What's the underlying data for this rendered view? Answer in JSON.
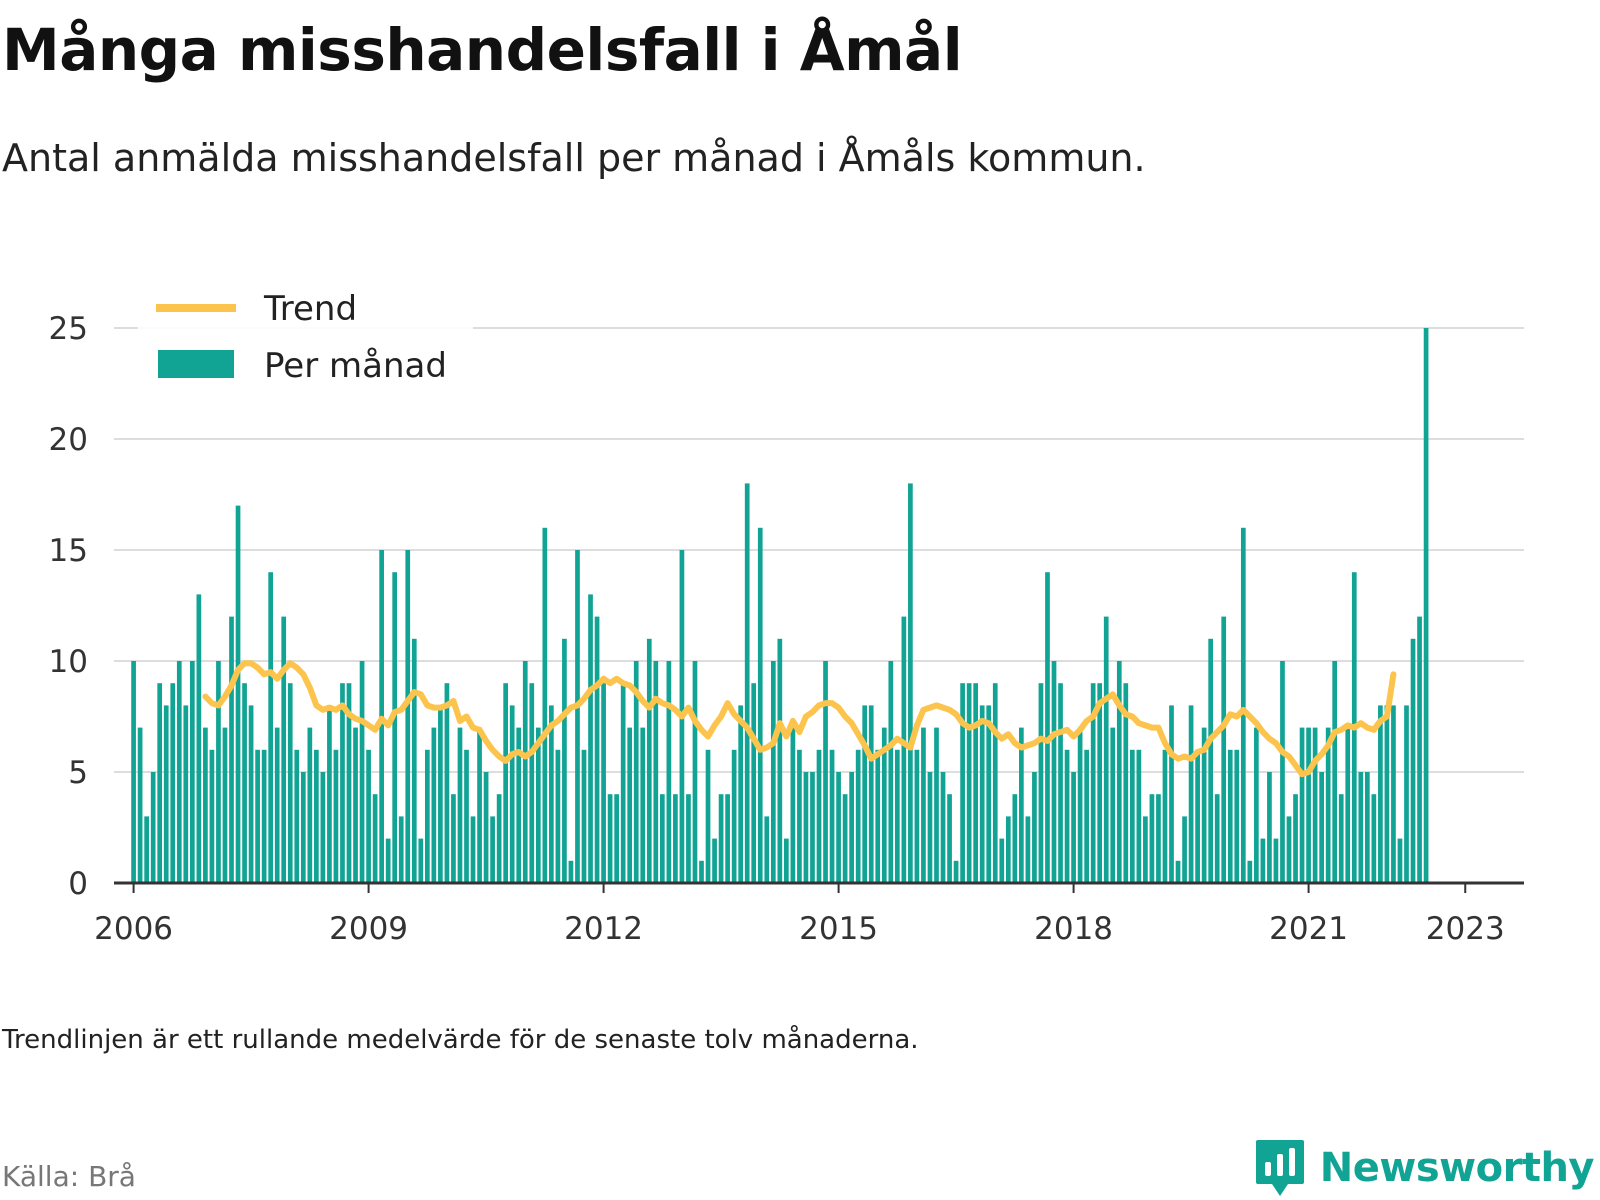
{
  "title": "Många misshandelsfall i Åmål",
  "subtitle": "Antal anmälda misshandelsfall per månad i Åmåls kommun.",
  "footnote": "Trendlinjen är ett rullande medelvärde för de senaste tolv månaderna.",
  "source": "Källa: Brå",
  "brand": {
    "name": "Newsworthy",
    "icon": "newsworthy-chart-bubble-icon"
  },
  "colors": {
    "bar": "#11a394",
    "trend": "#fcc44d",
    "grid": "#dddddd",
    "axis": "#333333"
  },
  "chart_data": {
    "type": "bar",
    "x_start": "2006-01",
    "interval": "month",
    "xlim": [
      "2005-10",
      "2023-10"
    ],
    "ylim": [
      0,
      25
    ],
    "yticks": [
      0,
      5,
      10,
      15,
      20,
      25
    ],
    "xticks": [
      "2006",
      "2009",
      "2012",
      "2015",
      "2018",
      "2021",
      "2023"
    ],
    "grid": "horizontal",
    "legend_position": "top-left",
    "series": [
      {
        "name": "Per månad",
        "type": "bar",
        "values": [
          10,
          7,
          3,
          5,
          9,
          8,
          9,
          10,
          8,
          10,
          13,
          7,
          6,
          10,
          7,
          12,
          17,
          9,
          8,
          6,
          6,
          14,
          7,
          12,
          9,
          6,
          5,
          7,
          6,
          5,
          8,
          6,
          9,
          9,
          7,
          10,
          6,
          4,
          15,
          2,
          14,
          3,
          15,
          11,
          2,
          6,
          7,
          8,
          9,
          4,
          7,
          6,
          3,
          7,
          5,
          3,
          4,
          9,
          8,
          7,
          10,
          9,
          7,
          16,
          8,
          6,
          11,
          1,
          15,
          6,
          13,
          12,
          9,
          4,
          4,
          9,
          7,
          10,
          7,
          11,
          10,
          4,
          10,
          4,
          15,
          4,
          10,
          1,
          6,
          2,
          4,
          4,
          6,
          8,
          18,
          9,
          16,
          3,
          10,
          11,
          2,
          7,
          6,
          5,
          5,
          6,
          10,
          6,
          5,
          4,
          5,
          6,
          8,
          8,
          6,
          7,
          10,
          6,
          12,
          18,
          6,
          7,
          5,
          7,
          5,
          4,
          1,
          9,
          9,
          9,
          8,
          8,
          9,
          2,
          3,
          4,
          7,
          3,
          5,
          9,
          14,
          10,
          9,
          6,
          5,
          7,
          6,
          9,
          9,
          12,
          7,
          10,
          9,
          6,
          6,
          3,
          4,
          4,
          6,
          8,
          1,
          3,
          8,
          6,
          7,
          11,
          4,
          12,
          6,
          6,
          16,
          1,
          7,
          2,
          5,
          2,
          10,
          3,
          4,
          7,
          7,
          7,
          5,
          7,
          10,
          4,
          7,
          14,
          5,
          5,
          4,
          8,
          8,
          8,
          2,
          8,
          11,
          12,
          25
        ]
      },
      {
        "name": "Trend",
        "type": "line",
        "start_index": 11,
        "values": [
          8.4,
          8.1,
          8.0,
          8.4,
          8.9,
          9.6,
          9.9,
          9.9,
          9.7,
          9.4,
          9.5,
          9.2,
          9.6,
          9.9,
          9.7,
          9.4,
          8.8,
          8.0,
          7.8,
          7.9,
          7.8,
          8.0,
          7.6,
          7.4,
          7.3,
          7.1,
          6.9,
          7.4,
          7.1,
          7.7,
          7.8,
          8.2,
          8.6,
          8.5,
          8.0,
          7.9,
          7.9,
          8.0,
          8.2,
          7.3,
          7.5,
          7.0,
          6.9,
          6.4,
          6.0,
          5.7,
          5.5,
          5.8,
          5.9,
          5.7,
          5.9,
          6.3,
          6.7,
          7.1,
          7.3,
          7.6,
          7.9,
          8.0,
          8.3,
          8.7,
          8.9,
          9.2,
          9.0,
          9.2,
          9.0,
          8.9,
          8.6,
          8.2,
          7.9,
          8.3,
          8.1,
          8.0,
          7.8,
          7.5,
          7.9,
          7.3,
          6.9,
          6.6,
          7.1,
          7.5,
          8.1,
          7.6,
          7.3,
          7.0,
          6.5,
          6.0,
          6.1,
          6.3,
          7.2,
          6.6,
          7.3,
          6.8,
          7.5,
          7.7,
          8.0,
          8.1,
          8.1,
          7.9,
          7.5,
          7.2,
          6.7,
          6.2,
          5.6,
          5.8,
          6.0,
          6.2,
          6.5,
          6.3,
          6.1,
          7.1,
          7.8,
          7.9,
          8.0,
          7.9,
          7.8,
          7.6,
          7.2,
          7.0,
          7.1,
          7.3,
          7.2,
          6.8,
          6.5,
          6.7,
          6.3,
          6.1,
          6.2,
          6.3,
          6.5,
          6.4,
          6.7,
          6.8,
          6.9,
          6.6,
          6.9,
          7.3,
          7.5,
          8.1,
          8.3,
          8.5,
          8.0,
          7.6,
          7.5,
          7.2,
          7.1,
          7.0,
          7.0,
          6.3,
          5.8,
          5.6,
          5.7,
          5.6,
          5.9,
          6.0,
          6.5,
          6.8,
          7.1,
          7.6,
          7.5,
          7.8,
          7.5,
          7.2,
          6.8,
          6.5,
          6.3,
          5.9,
          5.7,
          5.3,
          4.9,
          5.0,
          5.5,
          5.8,
          6.2,
          6.8,
          6.9,
          7.1,
          7.0,
          7.2,
          7.0,
          6.9,
          7.3,
          7.5,
          9.4
        ]
      }
    ]
  }
}
